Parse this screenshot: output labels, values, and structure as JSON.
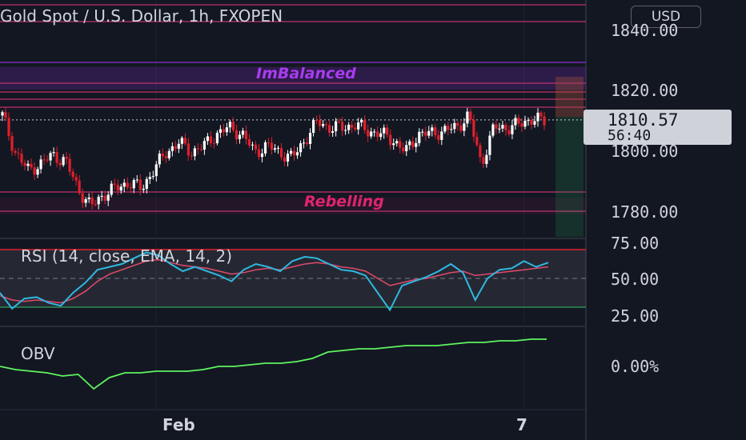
{
  "header": {
    "title": "Gold Spot / U.S. Dollar, 1h, FXOPEN",
    "currency": "USD"
  },
  "price_tag": {
    "price": "1810.57",
    "countdown": "56:40"
  },
  "price_axis": {
    "ticks": [
      "1840.00",
      "1820.00",
      "1800.00",
      "1780.00"
    ]
  },
  "rsi_axis": {
    "ticks": [
      "75.00",
      "50.00",
      "25.00"
    ]
  },
  "obv_axis": {
    "ticks": [
      "0.00%"
    ]
  },
  "time_axis": {
    "labels": [
      "Feb",
      "7"
    ]
  },
  "indicators": {
    "rsi_label": "RSI (14, close, EMA, 14, 2)",
    "obv_label": "OBV"
  },
  "annotations": {
    "imbalanced": "ImBalanced",
    "rebelling": "Rebelling"
  },
  "colors": {
    "background": "#131722",
    "up": "#ffffff",
    "down": "#e0202c",
    "rsi": "#2fb8e0",
    "rsi_ema": "#e24a6a",
    "obv": "#5ef55e",
    "zone": "#a02060",
    "imbalance": "#8c2fd6"
  },
  "chart_data": [
    {
      "type": "candlestick",
      "title": "Gold Spot / U.S. Dollar, 1h, FXOPEN",
      "ylim": [
        1776,
        1846
      ],
      "x_labels": [
        "Feb",
        "7"
      ],
      "approx_close_path": [
        1812,
        1800,
        1794,
        1796,
        1799,
        1797,
        1788,
        1782,
        1786,
        1788,
        1790,
        1788,
        1794,
        1800,
        1803,
        1800,
        1802,
        1806,
        1808,
        1806,
        1800,
        1802,
        1800,
        1798,
        1804,
        1810,
        1808,
        1808,
        1809,
        1807,
        1806,
        1804,
        1800,
        1806,
        1806,
        1807,
        1808,
        1812,
        1796,
        1808,
        1808,
        1809,
        1811,
        1810
      ],
      "last_price": 1810.57,
      "zones": [
        {
          "name": "ImBalanced",
          "from": 1820.5,
          "to": 1828
        },
        {
          "name": "Rebelling",
          "from": 1779.5,
          "to": 1785
        }
      ]
    },
    {
      "type": "line",
      "title": "RSI (14, close, EMA, 14, 2)",
      "ylim": [
        20,
        80
      ],
      "bands": [
        30,
        70
      ],
      "series": [
        {
          "values": [
            40,
            29,
            36,
            37,
            33,
            31,
            40,
            47,
            56,
            58,
            60,
            64,
            68,
            66,
            60,
            55,
            58,
            55,
            52,
            48,
            56,
            60,
            58,
            55,
            62,
            65,
            64,
            60,
            56,
            55,
            52,
            40,
            28,
            45,
            48,
            51,
            55,
            60,
            54,
            35,
            50,
            56,
            57,
            62,
            58,
            61
          ]
        },
        {
          "values": [
            38,
            35,
            34,
            35,
            34,
            33,
            36,
            41,
            48,
            53,
            56,
            59,
            62,
            63,
            61,
            59,
            58,
            57,
            55,
            53,
            54,
            56,
            57,
            56,
            58,
            60,
            61,
            60,
            58,
            57,
            55,
            50,
            45,
            47,
            49,
            50,
            52,
            54,
            55,
            52,
            53,
            54,
            55,
            56,
            57,
            58
          ]
        }
      ]
    },
    {
      "type": "line",
      "title": "OBV",
      "series": [
        {
          "values": [
            0,
            -2,
            -3,
            -4,
            -6,
            -5,
            -14,
            -7,
            -4,
            -4,
            -3,
            -3,
            -3,
            -2,
            0,
            0,
            1,
            2,
            2,
            3,
            5,
            9,
            10,
            11,
            11,
            12,
            13,
            13,
            13,
            14,
            15,
            15,
            16,
            16,
            17,
            17
          ]
        }
      ]
    }
  ]
}
